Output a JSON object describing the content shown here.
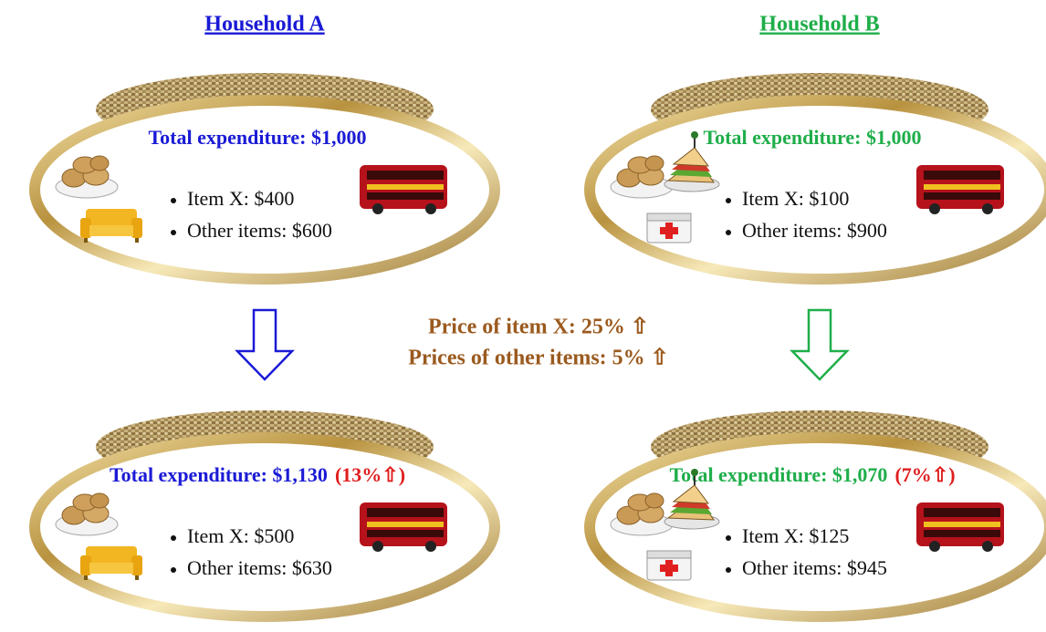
{
  "households": [
    {
      "title": "Household A",
      "before": {
        "total": "Total expenditure: $1,000",
        "items": [
          "Item X: $400",
          "Other items: $600"
        ]
      },
      "after": {
        "total": "Total expenditure: $1,130",
        "change": "(13%⇧)",
        "items": [
          "Item X: $500",
          "Other items: $630"
        ]
      }
    },
    {
      "title": "Household B",
      "before": {
        "total": "Total expenditure: $1,000",
        "items": [
          "Item X: $100",
          "Other items: $900"
        ]
      },
      "after": {
        "total": "Total expenditure: $1,070",
        "change": "(7%⇧)",
        "items": [
          "Item X: $125",
          "Other items: $945"
        ]
      }
    }
  ],
  "price_changes": [
    "Price of item X: 25% ⇧",
    "Prices of other items: 5% ⇧"
  ]
}
